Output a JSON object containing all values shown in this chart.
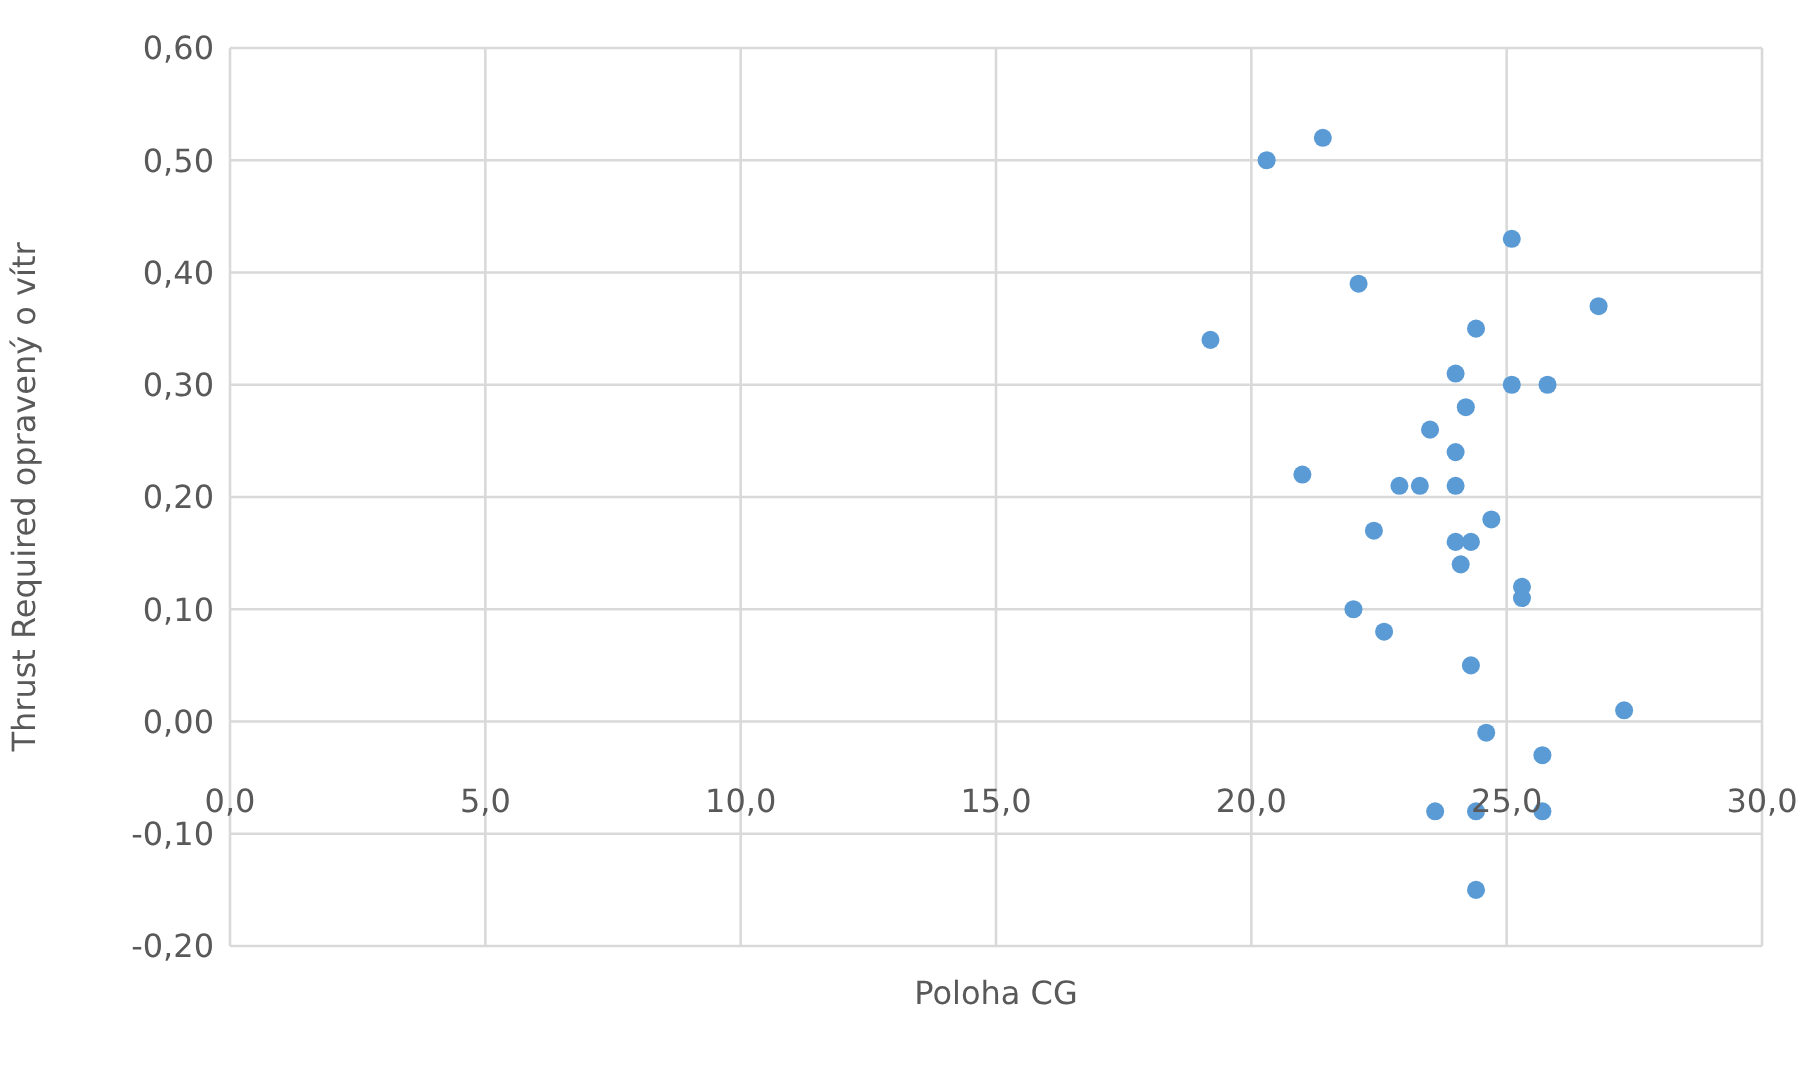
{
  "chart_data": {
    "type": "scatter",
    "xlabel": "Poloha CG",
    "ylabel": "Thrust Required opravený o vítr",
    "marker": "circle",
    "grid": true,
    "xlim": [
      0,
      30
    ],
    "xticks": [
      {
        "value": 0,
        "label": "0,0"
      },
      {
        "value": 5,
        "label": "5,0"
      },
      {
        "value": 10,
        "label": "10,0"
      },
      {
        "value": 15,
        "label": "15,0"
      },
      {
        "value": 20,
        "label": "20,0"
      },
      {
        "value": 25,
        "label": "25,0"
      },
      {
        "value": 30,
        "label": "30,0"
      }
    ],
    "ylim": [
      -0.2,
      0.6
    ],
    "yticks": [
      {
        "value": -0.2,
        "label": "-0,20"
      },
      {
        "value": -0.1,
        "label": "-0,10"
      },
      {
        "value": 0,
        "label": "0,00"
      },
      {
        "value": 0.1,
        "label": "0,10"
      },
      {
        "value": 0.2,
        "label": "0,20"
      },
      {
        "value": 0.3,
        "label": "0,30"
      },
      {
        "value": 0.4,
        "label": "0,40"
      },
      {
        "value": 0.5,
        "label": "0,50"
      },
      {
        "value": 0.6,
        "label": "0,60"
      }
    ],
    "series": [
      {
        "color": "#5b9bd5",
        "x": [
          20.3,
          21.4,
          25.1,
          22.1,
          26.8,
          19.2,
          24.4,
          24.0,
          25.1,
          25.8,
          24.2,
          23.5,
          24.0,
          24.0,
          21.0,
          22.9,
          23.3,
          24.7,
          22.4,
          24.0,
          24.3,
          24.1,
          25.3,
          25.3,
          22.0,
          22.6,
          24.3,
          24.6,
          27.3,
          25.7,
          23.6,
          24.4,
          25.7,
          24.4
        ],
        "values": [
          0.5,
          0.52,
          0.43,
          0.39,
          0.37,
          0.34,
          0.35,
          0.31,
          0.3,
          0.3,
          0.28,
          0.26,
          0.24,
          0.21,
          0.22,
          0.21,
          0.21,
          0.18,
          0.17,
          0.16,
          0.16,
          0.14,
          0.12,
          0.11,
          0.1,
          0.08,
          0.05,
          -0.01,
          0.01,
          -0.03,
          -0.08,
          -0.08,
          -0.08,
          -0.15
        ]
      }
    ]
  }
}
